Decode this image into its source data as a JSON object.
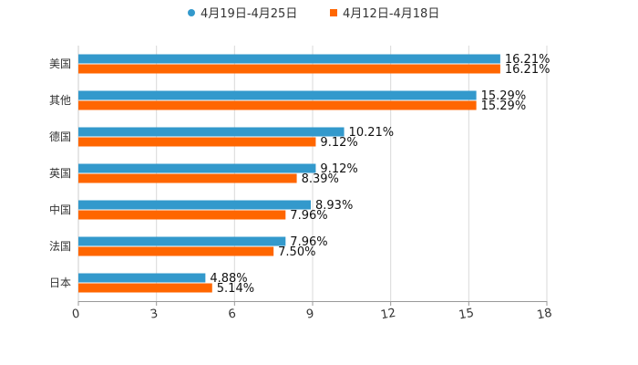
{
  "chart_data": {
    "type": "bar",
    "orientation": "horizontal",
    "categories": [
      "美国",
      "其他",
      "德国",
      "英国",
      "中国",
      "法国",
      "日本"
    ],
    "series": [
      {
        "name": "4月19日-4月25日",
        "color": "#3399CC",
        "values": [
          16.21,
          15.29,
          10.21,
          9.12,
          8.93,
          7.96,
          4.88
        ],
        "labels": [
          "16.21%",
          "15.29%",
          "10.21%",
          "9.12%",
          "8.93%",
          "7.96%",
          "4.88%"
        ]
      },
      {
        "name": "4月12日-4月18日",
        "color": "#FF6600",
        "values": [
          16.21,
          15.29,
          9.12,
          8.39,
          7.96,
          7.5,
          5.14
        ],
        "labels": [
          "16.21%",
          "15.29%",
          "9.12%",
          "8.39%",
          "7.96%",
          "7.50%",
          "5.14%"
        ]
      }
    ],
    "xlim": [
      0,
      18
    ],
    "xticks": [
      "0",
      "3",
      "6",
      "9",
      "12",
      "15",
      "18"
    ],
    "grid": true,
    "legend_position": "top-center"
  }
}
